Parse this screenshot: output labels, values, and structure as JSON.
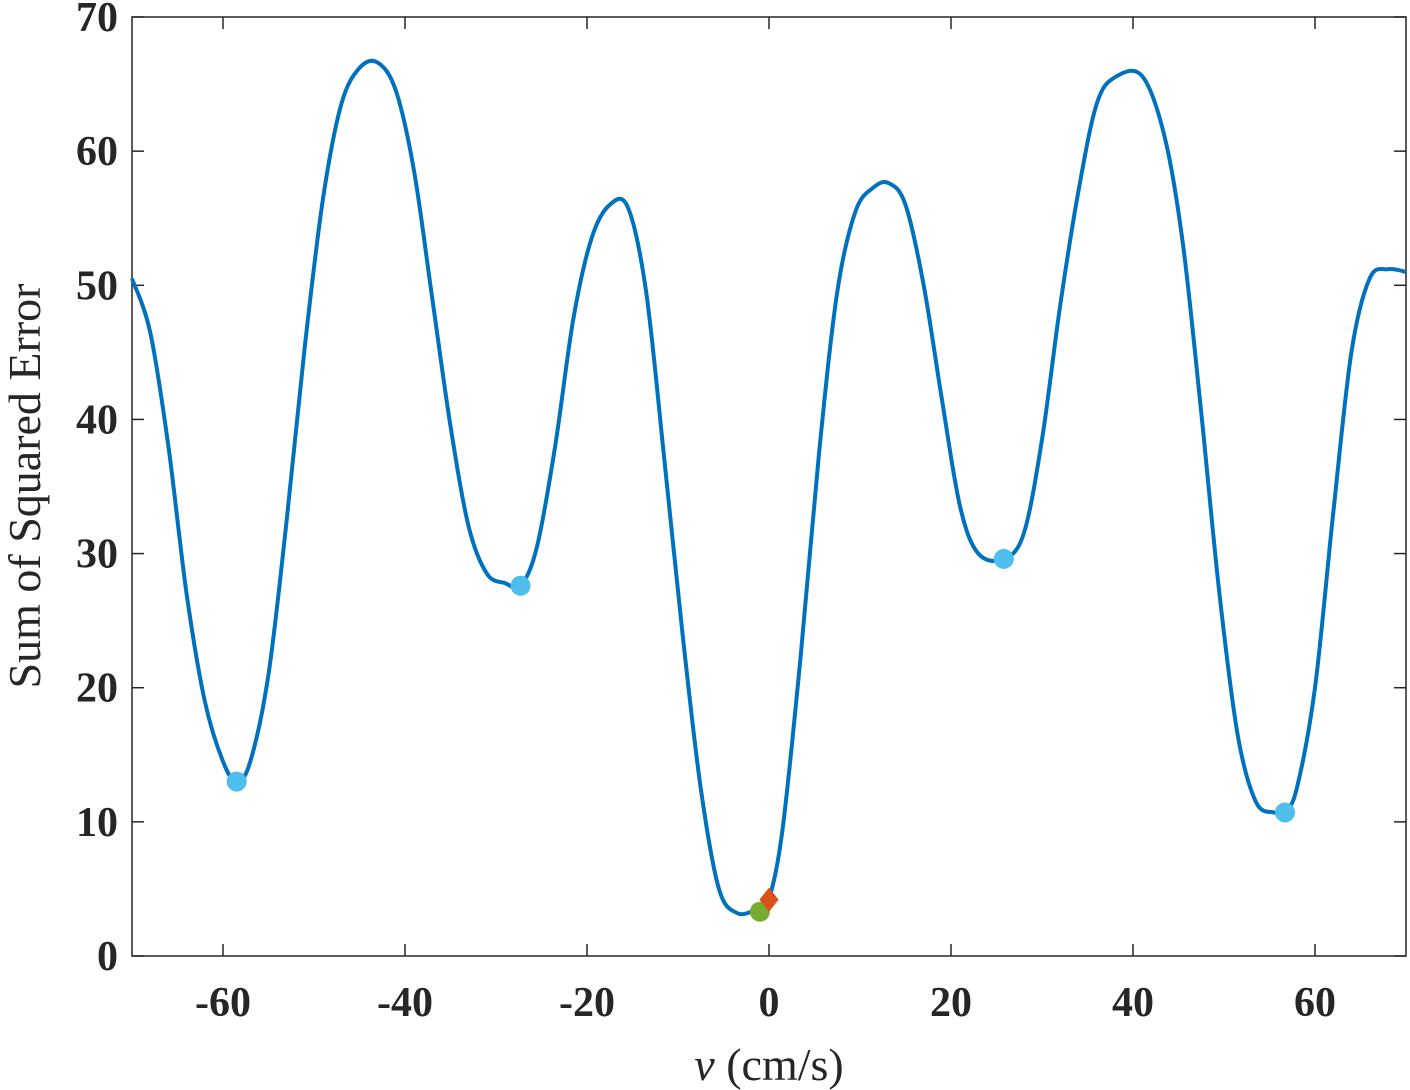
{
  "chart_data": {
    "type": "line",
    "title": "",
    "xlabel_var": "v",
    "xlabel_unit": "(cm/s)",
    "ylabel": "Sum of Squared Error",
    "xlim": [
      -70,
      70
    ],
    "ylim": [
      0,
      70
    ],
    "grid": false,
    "xticks": [
      -60,
      -40,
      -20,
      0,
      20,
      40,
      60
    ],
    "yticks": [
      0,
      10,
      20,
      30,
      40,
      50,
      60,
      70
    ],
    "xtick_labels": [
      "-60",
      "-40",
      "-20",
      "0",
      "20",
      "40",
      "60"
    ],
    "ytick_labels": [
      "0",
      "10",
      "20",
      "30",
      "40",
      "50",
      "60",
      "70"
    ],
    "series": [
      {
        "style": "line",
        "color": "#0072BD",
        "x": [
          -70,
          -68,
          -66,
          -64,
          -62,
          -60,
          -58.5,
          -57,
          -55,
          -53,
          -51,
          -49,
          -47,
          -45,
          -43,
          -41,
          -39,
          -37,
          -35,
          -33,
          -31,
          -29,
          -27.3,
          -25.5,
          -23.5,
          -21.5,
          -19.5,
          -17.5,
          -15.5,
          -13.5,
          -11.5,
          -9.5,
          -7.5,
          -5.5,
          -3.5,
          -1.5,
          -1,
          0,
          1.5,
          3.5,
          5.5,
          7.5,
          9.5,
          11.5,
          13.2,
          15,
          17,
          19,
          21,
          23,
          25.8,
          28,
          30,
          32,
          34,
          36,
          38,
          41,
          43.5,
          45.5,
          47.5,
          49.5,
          51.5,
          53.5,
          55.5,
          56.7,
          58,
          60,
          62,
          64,
          66,
          68,
          70
        ],
        "y": [
          50.5,
          46.5,
          38,
          27,
          19,
          14.5,
          13.0,
          14.5,
          21,
          32.5,
          45.5,
          56.5,
          63.5,
          66.2,
          66.6,
          64.5,
          58.5,
          49,
          39.5,
          32,
          28.5,
          27.8,
          27.6,
          30.5,
          38,
          47.5,
          53.5,
          56,
          55.8,
          49.5,
          37,
          24,
          12.5,
          5,
          3.2,
          3.4,
          3.3,
          4.2,
          9.5,
          22.5,
          37.5,
          49.5,
          55.5,
          57.3,
          57.6,
          56,
          50,
          41.5,
          33.5,
          30,
          29.6,
          31.5,
          38.5,
          48.5,
          57,
          63.5,
          65.5,
          65.6,
          61,
          53,
          40.5,
          27,
          16.5,
          11.5,
          10.7,
          10.8,
          12.5,
          20,
          33,
          45,
          50.5,
          51.2,
          51
        ]
      },
      {
        "style": "markers",
        "marker": "circle",
        "color": "#4DBEEE",
        "x": [
          -58.5,
          -27.3,
          25.8,
          56.7
        ],
        "y": [
          13.0,
          27.6,
          29.6,
          10.7
        ]
      },
      {
        "style": "markers",
        "marker": "circle",
        "color": "#77AC30",
        "x": [
          -1
        ],
        "y": [
          3.3
        ]
      },
      {
        "style": "markers",
        "marker": "diamond",
        "color": "#D95319",
        "x": [
          0
        ],
        "y": [
          4.2
        ]
      }
    ]
  }
}
